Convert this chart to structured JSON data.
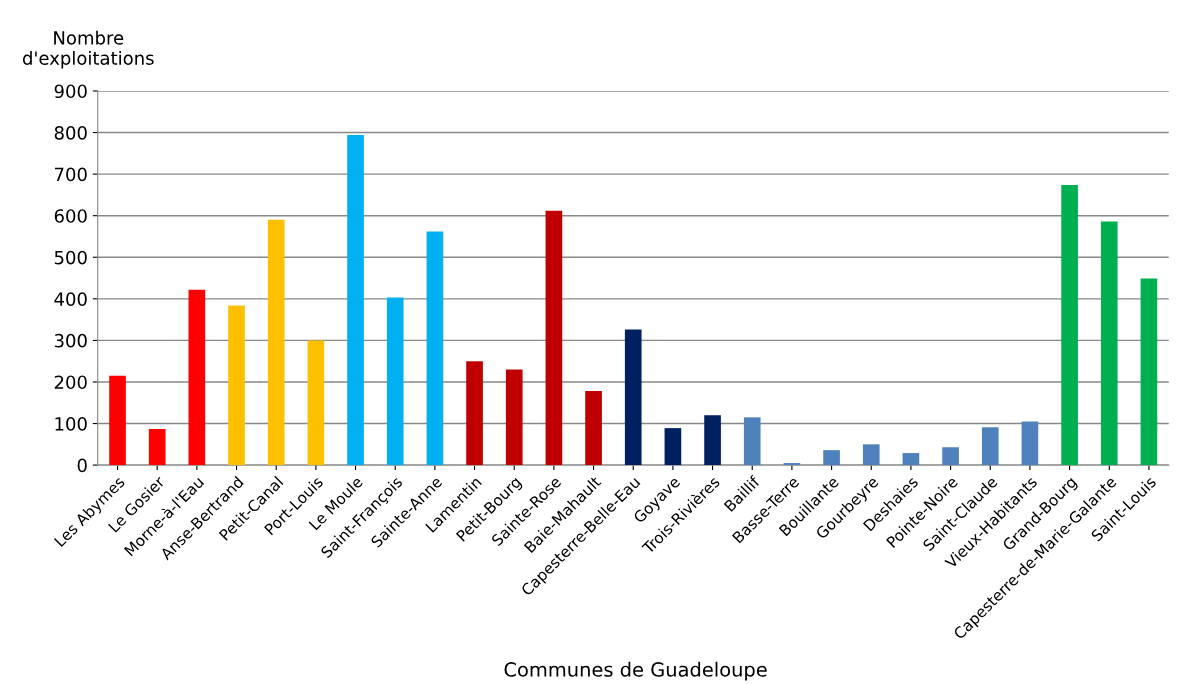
{
  "chart_data": {
    "type": "bar",
    "ylabel": "Nombre\nd'exploitations",
    "xlabel": "Communes de Guadeloupe",
    "categories": [
      "Les Abymes",
      "Le Gosier",
      "Morne-à-l'Eau",
      "Anse-Bertrand",
      "Petit-Canal",
      "Port-Louis",
      "Le Moule",
      "Saint-François",
      "Sainte-Anne",
      "Lamentin",
      "Petit-Bourg",
      "Sainte-Rose",
      "Baie-Mahault",
      "Capesterre-Belle-Eau",
      "Goyave",
      "Trois-Rivières",
      "Baillif",
      "Basse-Terre",
      "Bouillante",
      "Gourbeyre",
      "Deshaies",
      "Pointe-Noire",
      "Saint-Claude",
      "Vieux-Habitants",
      "Grand-Bourg",
      "Capesterre-de-Marie-Galante",
      "Saint-Louis"
    ],
    "values": [
      215,
      87,
      422,
      384,
      590,
      300,
      794,
      403,
      562,
      250,
      230,
      612,
      178,
      326,
      89,
      120,
      115,
      5,
      36,
      50,
      29,
      43,
      91,
      105,
      674,
      586,
      449
    ],
    "colors": [
      "#ff0000",
      "#ff0000",
      "#ff0000",
      "#ffc000",
      "#ffc000",
      "#ffc000",
      "#00b0f0",
      "#00b0f0",
      "#00b0f0",
      "#c00000",
      "#c00000",
      "#c00000",
      "#c00000",
      "#002060",
      "#002060",
      "#002060",
      "#4f81bd",
      "#4f81bd",
      "#4f81bd",
      "#4f81bd",
      "#4f81bd",
      "#4f81bd",
      "#4f81bd",
      "#4f81bd",
      "#00b050",
      "#00b050",
      "#00b050"
    ],
    "ylim": [
      0,
      900
    ],
    "yticks": [
      0,
      100,
      200,
      300,
      400,
      500,
      600,
      700,
      800,
      900
    ],
    "grid": "y",
    "legend": false
  }
}
